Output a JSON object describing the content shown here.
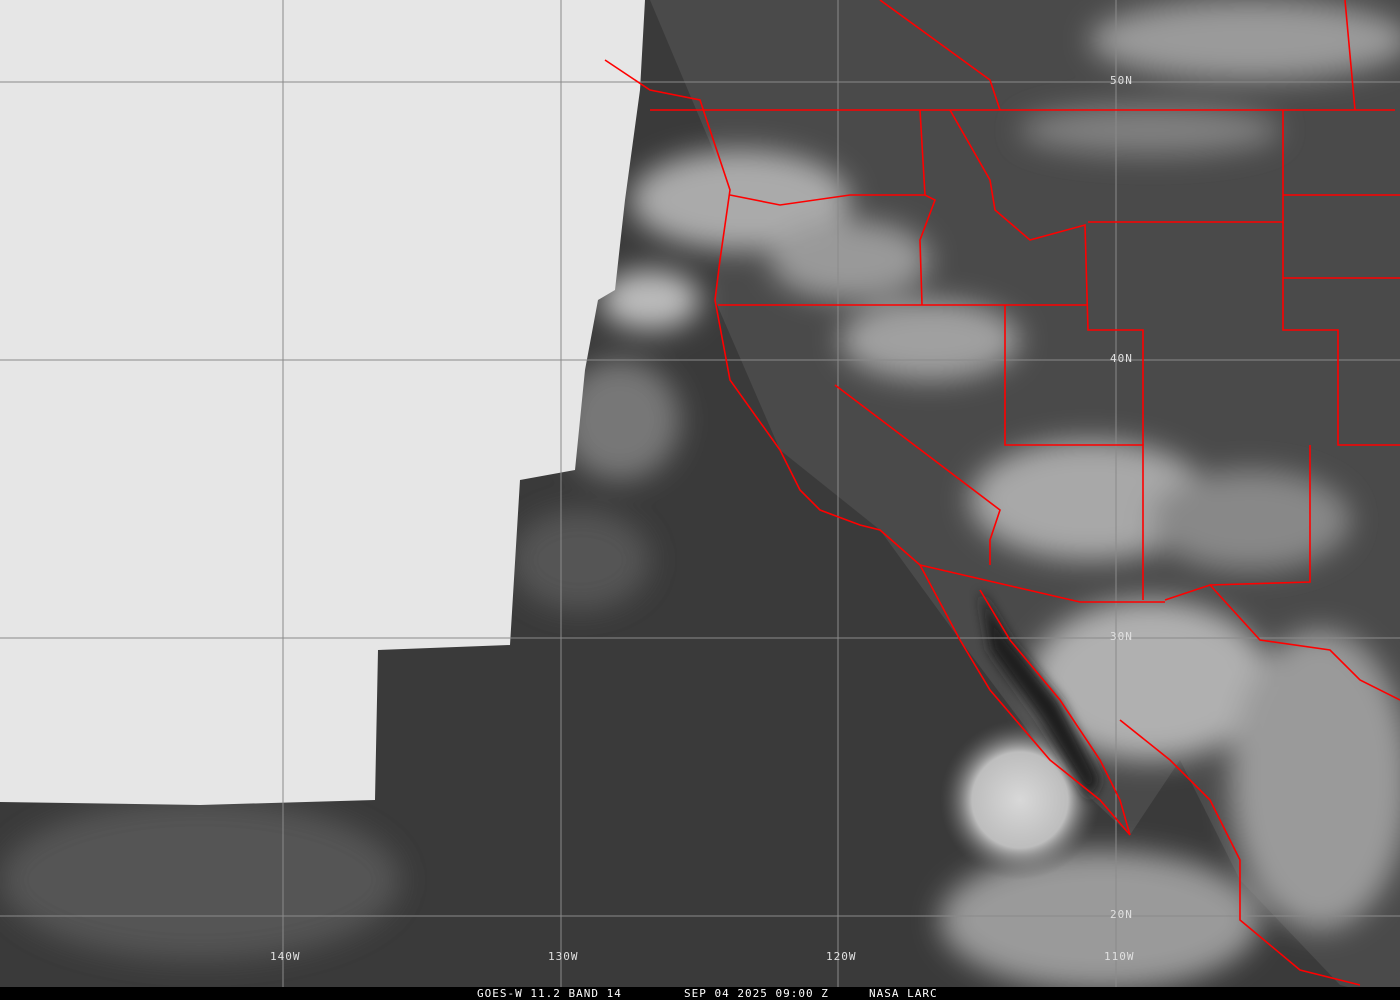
{
  "caption": {
    "satellite": "GOES-W 11.2 BAND 14",
    "datetime": "SEP 04 2025 09:00 Z",
    "source": "NASA LARC"
  },
  "grid": {
    "latitudes": [
      "50N",
      "40N",
      "30N",
      "20N"
    ],
    "longitudes": [
      "140W",
      "130W",
      "120W",
      "110W"
    ]
  },
  "colors": {
    "borders": "#ff0000",
    "no_data": "#e6e6e6",
    "grid": "#8a8a8a"
  }
}
